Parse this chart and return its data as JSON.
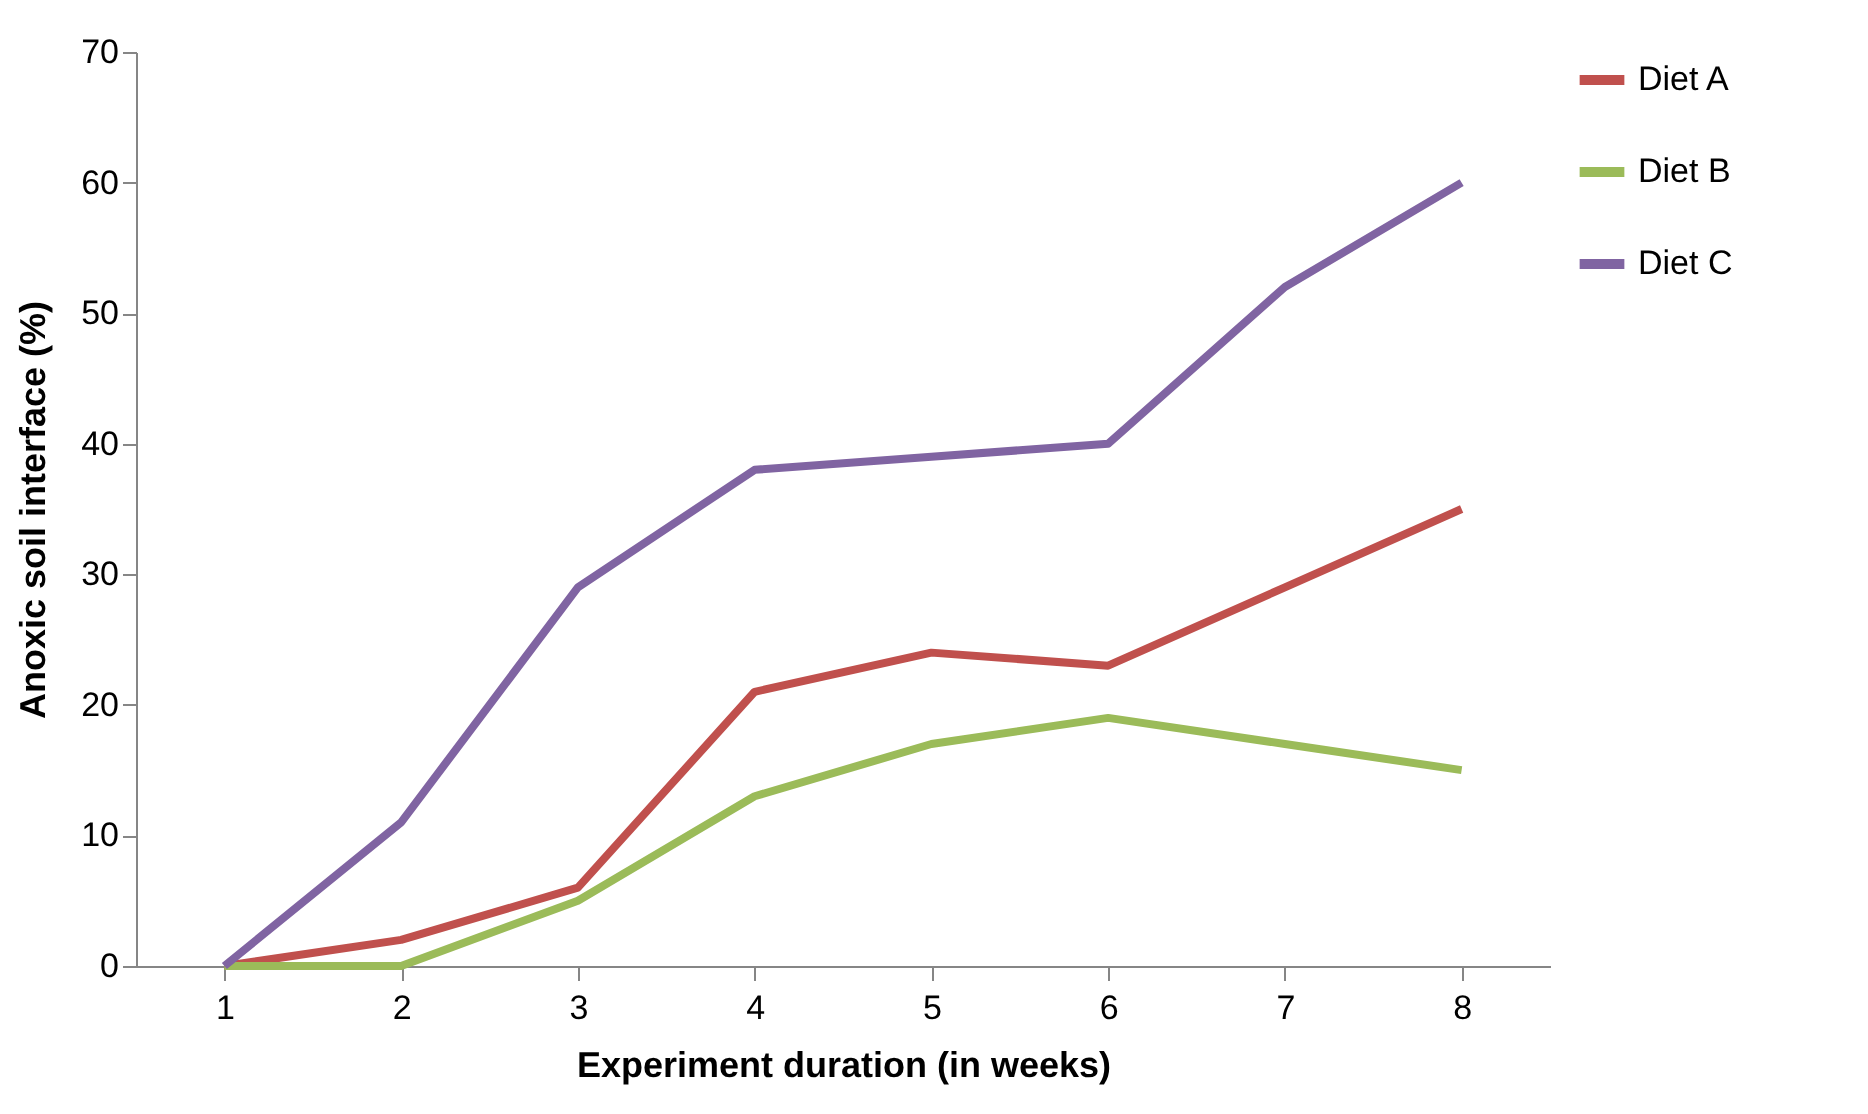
{
  "chart_data": {
    "type": "line",
    "xlabel": "Experiment duration (in weeks)",
    "ylabel": "Anoxic soil interface (%)",
    "categories": [
      "1",
      "2",
      "3",
      "4",
      "5",
      "6",
      "7",
      "8"
    ],
    "ylim": [
      0,
      70
    ],
    "yticks": [
      0,
      10,
      20,
      30,
      40,
      50,
      60,
      70
    ],
    "grid": false,
    "legend": "right",
    "marker": "none",
    "line_style": "solid",
    "series": [
      {
        "name": "Diet A",
        "color": "#c0504d",
        "values": [
          0,
          2,
          6,
          21,
          24,
          23,
          29,
          35
        ]
      },
      {
        "name": "Diet B",
        "color": "#9bbb59",
        "values": [
          0,
          0,
          5,
          13,
          17,
          19,
          17,
          15
        ]
      },
      {
        "name": "Diet C",
        "color": "#8064a2",
        "values": [
          0,
          11,
          29,
          38,
          39,
          40,
          52,
          60
        ]
      }
    ]
  }
}
